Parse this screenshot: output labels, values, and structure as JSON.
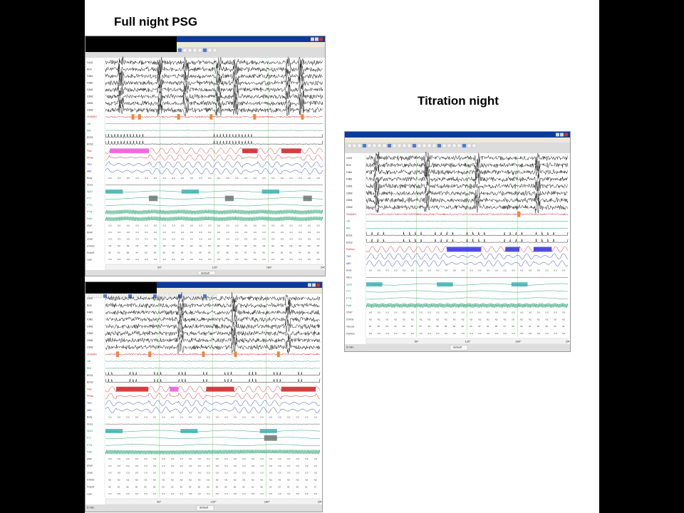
{
  "slide": {
    "title_left": "Full night PSG",
    "title_right": "Titration night"
  },
  "colors": {
    "background": "#000000",
    "slide": "#ffffff",
    "eeg": "#111111",
    "flow": "#cc2222",
    "resp": "#2233bb",
    "spo2": "#1a9a6a",
    "event_red": "#cc2222",
    "event_pink": "#ee55dd",
    "event_blue": "#3333dd",
    "event_teal": "#22aaaa",
    "event_gray": "#888888",
    "event_orange": "#ee8833"
  },
  "screens": {
    "psg_top": {
      "label": "Full night PSG screen 1",
      "status": "",
      "window_title": "",
      "menu": [],
      "layout": "p1",
      "time_axis": [
        "60\"",
        "120\"",
        "180\"",
        "240\""
      ],
      "footer_center": "default",
      "footer_left": "",
      "channels": [
        {
          "label": "C4O2",
          "kind": "eeg"
        },
        {
          "label": "ROC",
          "kind": "eeg"
        },
        {
          "label": "F4M1",
          "kind": "eeg"
        },
        {
          "label": "F3M2",
          "kind": "eeg"
        },
        {
          "label": "C4M1",
          "kind": "eeg"
        },
        {
          "label": "C3M2",
          "kind": "eeg"
        },
        {
          "label": "O2M1",
          "kind": "eeg"
        },
        {
          "label": "O1M2",
          "kind": "eeg"
        },
        {
          "label": "ChinEMG",
          "kind": "emg"
        },
        {
          "label": "Ltib",
          "kind": "leg"
        },
        {
          "label": "Rtib",
          "kind": "leg"
        },
        {
          "label": "ECG1",
          "kind": "ecg"
        },
        {
          "label": "ECG2",
          "kind": "ecg"
        },
        {
          "label": "Flow",
          "kind": "flow"
        },
        {
          "label": "PFlow",
          "kind": "flow"
        },
        {
          "label": "THO",
          "kind": "resp"
        },
        {
          "label": "ABD",
          "kind": "resp"
        },
        {
          "label": "Body",
          "kind": "num"
        },
        {
          "label": "Snore",
          "kind": "flat"
        },
        {
          "label": "SpO2",
          "kind": "spo2"
        },
        {
          "label": "PTT",
          "kind": "trend"
        },
        {
          "label": "PTTo",
          "kind": "trend"
        },
        {
          "label": "PTTs",
          "kind": "dense"
        },
        {
          "label": "Pleth",
          "kind": "dense"
        },
        {
          "label": "IPAP",
          "kind": "num"
        },
        {
          "label": "EPAP",
          "kind": "num"
        },
        {
          "label": "CPAP",
          "kind": "num"
        },
        {
          "label": "STAGE",
          "kind": "num"
        },
        {
          "label": "PulseR",
          "kind": "num"
        },
        {
          "label": "Leak",
          "kind": "num"
        }
      ]
    },
    "psg_bottom": {
      "label": "Full night PSG screen 2",
      "status": "",
      "window_title": "",
      "menu": [],
      "layout": "p2",
      "time_axis": [
        "60\"",
        "120\"",
        "180\"",
        "240\""
      ],
      "footer_center": "default",
      "footer_left": "5 min.",
      "channels": [
        {
          "label": "C4O2",
          "kind": "eeg"
        },
        {
          "label": "ROC",
          "kind": "eeg"
        },
        {
          "label": "F4M1",
          "kind": "eeg"
        },
        {
          "label": "F3M2",
          "kind": "eeg"
        },
        {
          "label": "C4M1",
          "kind": "eeg"
        },
        {
          "label": "C3M2",
          "kind": "eeg"
        },
        {
          "label": "O2M1",
          "kind": "eeg"
        },
        {
          "label": "O1M2",
          "kind": "eeg"
        },
        {
          "label": "ChinEMG",
          "kind": "emg"
        },
        {
          "label": "Ltib",
          "kind": "leg"
        },
        {
          "label": "Rtib",
          "kind": "leg"
        },
        {
          "label": "ECG1",
          "kind": "ecg"
        },
        {
          "label": "ECG2",
          "kind": "ecg"
        },
        {
          "label": "Flow",
          "kind": "flow"
        },
        {
          "label": "PFlow",
          "kind": "flow"
        },
        {
          "label": "THO",
          "kind": "resp"
        },
        {
          "label": "ABD",
          "kind": "resp"
        },
        {
          "label": "Body",
          "kind": "num"
        },
        {
          "label": "Snore",
          "kind": "flat"
        },
        {
          "label": "SpO2",
          "kind": "spo2"
        },
        {
          "label": "PTT",
          "kind": "trend"
        },
        {
          "label": "PTTs",
          "kind": "trend"
        },
        {
          "label": "Pleth",
          "kind": "dense"
        },
        {
          "label": "IPAP",
          "kind": "num"
        },
        {
          "label": "EPAP",
          "kind": "num"
        },
        {
          "label": "CPAP",
          "kind": "num"
        },
        {
          "label": "STAGE",
          "kind": "num"
        },
        {
          "label": "PulseR",
          "kind": "num"
        },
        {
          "label": "Leak",
          "kind": "num"
        }
      ]
    },
    "titration": {
      "label": "Titration night screen",
      "status": "",
      "window_title": "",
      "menu": [],
      "layout": "t",
      "time_axis": [
        "60\"",
        "120\"",
        "180\"",
        "240\""
      ],
      "footer_center": "default",
      "footer_left": "5 min.",
      "channels": [
        {
          "label": "C4O2",
          "kind": "eeg"
        },
        {
          "label": "ROC",
          "kind": "eeg"
        },
        {
          "label": "F4M1",
          "kind": "eeg"
        },
        {
          "label": "F3M2",
          "kind": "eeg"
        },
        {
          "label": "C4M1",
          "kind": "eeg"
        },
        {
          "label": "C3M2",
          "kind": "eeg"
        },
        {
          "label": "O2M1",
          "kind": "eeg"
        },
        {
          "label": "O1M2",
          "kind": "eeg"
        },
        {
          "label": "ChinEMG",
          "kind": "emg"
        },
        {
          "label": "Ltib",
          "kind": "leg"
        },
        {
          "label": "Rtib",
          "kind": "leg"
        },
        {
          "label": "ECG1",
          "kind": "ecg"
        },
        {
          "label": "ECG2",
          "kind": "ecg"
        },
        {
          "label": "PatFlow",
          "kind": "flow"
        },
        {
          "label": "THO",
          "kind": "resp"
        },
        {
          "label": "ABD",
          "kind": "resp"
        },
        {
          "label": "Body",
          "kind": "num"
        },
        {
          "label": "Micro",
          "kind": "flat"
        },
        {
          "label": "SpO2",
          "kind": "spo2"
        },
        {
          "label": "PTT",
          "kind": "trend"
        },
        {
          "label": "PTTs",
          "kind": "trend"
        },
        {
          "label": "Pleth",
          "kind": "dense"
        },
        {
          "label": "CPAP",
          "kind": "num"
        },
        {
          "label": "STAGE",
          "kind": "num"
        },
        {
          "label": "TotLeak",
          "kind": "num"
        },
        {
          "label": "PatFlow",
          "kind": "num"
        }
      ]
    }
  }
}
